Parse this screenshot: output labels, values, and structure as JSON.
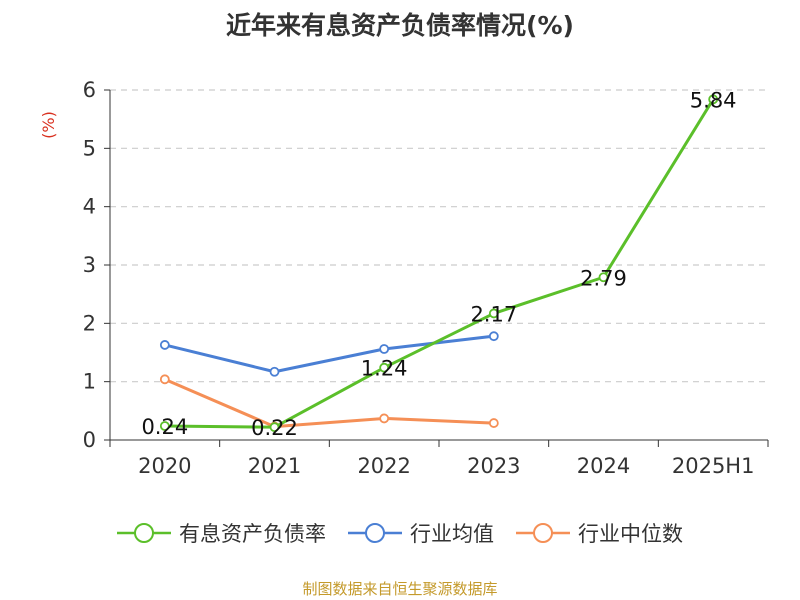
{
  "chart_data": {
    "type": "line",
    "title": "近年来有息资产负债率情况(%)",
    "ylabel": "(%)",
    "categories": [
      "2020",
      "2021",
      "2022",
      "2023",
      "2024",
      "2025H1"
    ],
    "ylim": [
      0,
      6
    ],
    "yticks": [
      "0",
      "1",
      "2",
      "3",
      "4",
      "5",
      "6"
    ],
    "grid": true,
    "legend_position": "bottom",
    "series": [
      {
        "name": "有息资产负债率",
        "color": "#5bbf2a",
        "values": [
          0.24,
          0.22,
          1.24,
          2.17,
          2.79,
          5.84
        ],
        "labels": [
          "0.24",
          "0.22",
          "1.24",
          "2.17",
          "2.79",
          "5.84"
        ]
      },
      {
        "name": "行业均值",
        "color": "#4a7fd4",
        "values": [
          1.63,
          1.17,
          1.56,
          1.78,
          null,
          null
        ]
      },
      {
        "name": "行业中位数",
        "color": "#f58f56",
        "values": [
          1.04,
          0.23,
          0.37,
          0.29,
          null,
          null
        ]
      }
    ],
    "source": "制图数据来自恒生聚源数据库"
  }
}
